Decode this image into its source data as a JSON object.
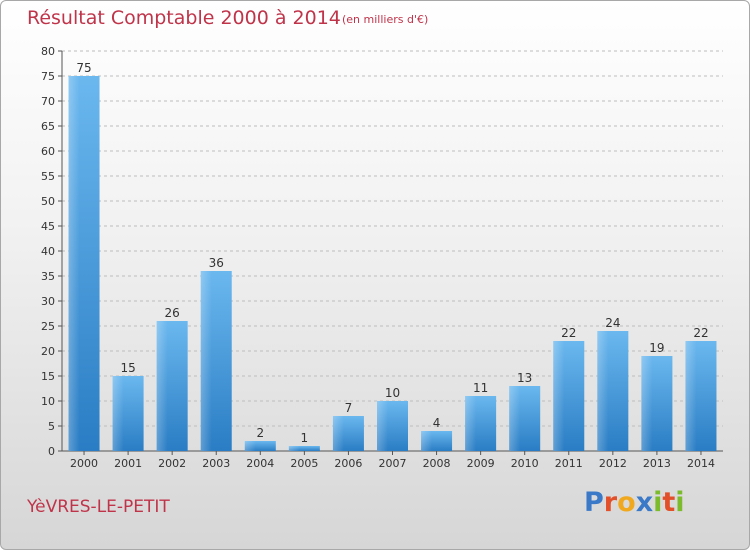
{
  "title": "Résultat Comptable 2000 à 2014",
  "subtitle": "(en milliers d'€)",
  "commune": "YèVRES-LE-PETIT",
  "brand": {
    "letters": [
      "P",
      "r",
      "o",
      "x",
      "i",
      "t",
      "i"
    ],
    "colors": [
      "#3a78c8",
      "#e2502a",
      "#f0a81e",
      "#3a78c8",
      "#7cbb2c",
      "#e2502a",
      "#7cbb2c"
    ]
  },
  "colors": {
    "bar_light": "#6bb8ef",
    "bar_dark": "#2a7dc4",
    "title": "#c0344a"
  },
  "chart_data": {
    "type": "bar",
    "title": "Résultat Comptable 2000 à 2014",
    "subtitle": "(en milliers d'€)",
    "xlabel": "",
    "ylabel": "",
    "categories": [
      "2000",
      "2001",
      "2002",
      "2003",
      "2004",
      "2005",
      "2006",
      "2007",
      "2008",
      "2009",
      "2010",
      "2011",
      "2012",
      "2013",
      "2014"
    ],
    "values": [
      75,
      15,
      26,
      36,
      2,
      1,
      7,
      10,
      4,
      11,
      13,
      22,
      24,
      19,
      22
    ],
    "ylim": [
      0,
      80
    ],
    "yticks": [
      0,
      5,
      10,
      15,
      20,
      25,
      30,
      35,
      40,
      45,
      50,
      55,
      60,
      65,
      70,
      75,
      80
    ],
    "grid": true
  }
}
